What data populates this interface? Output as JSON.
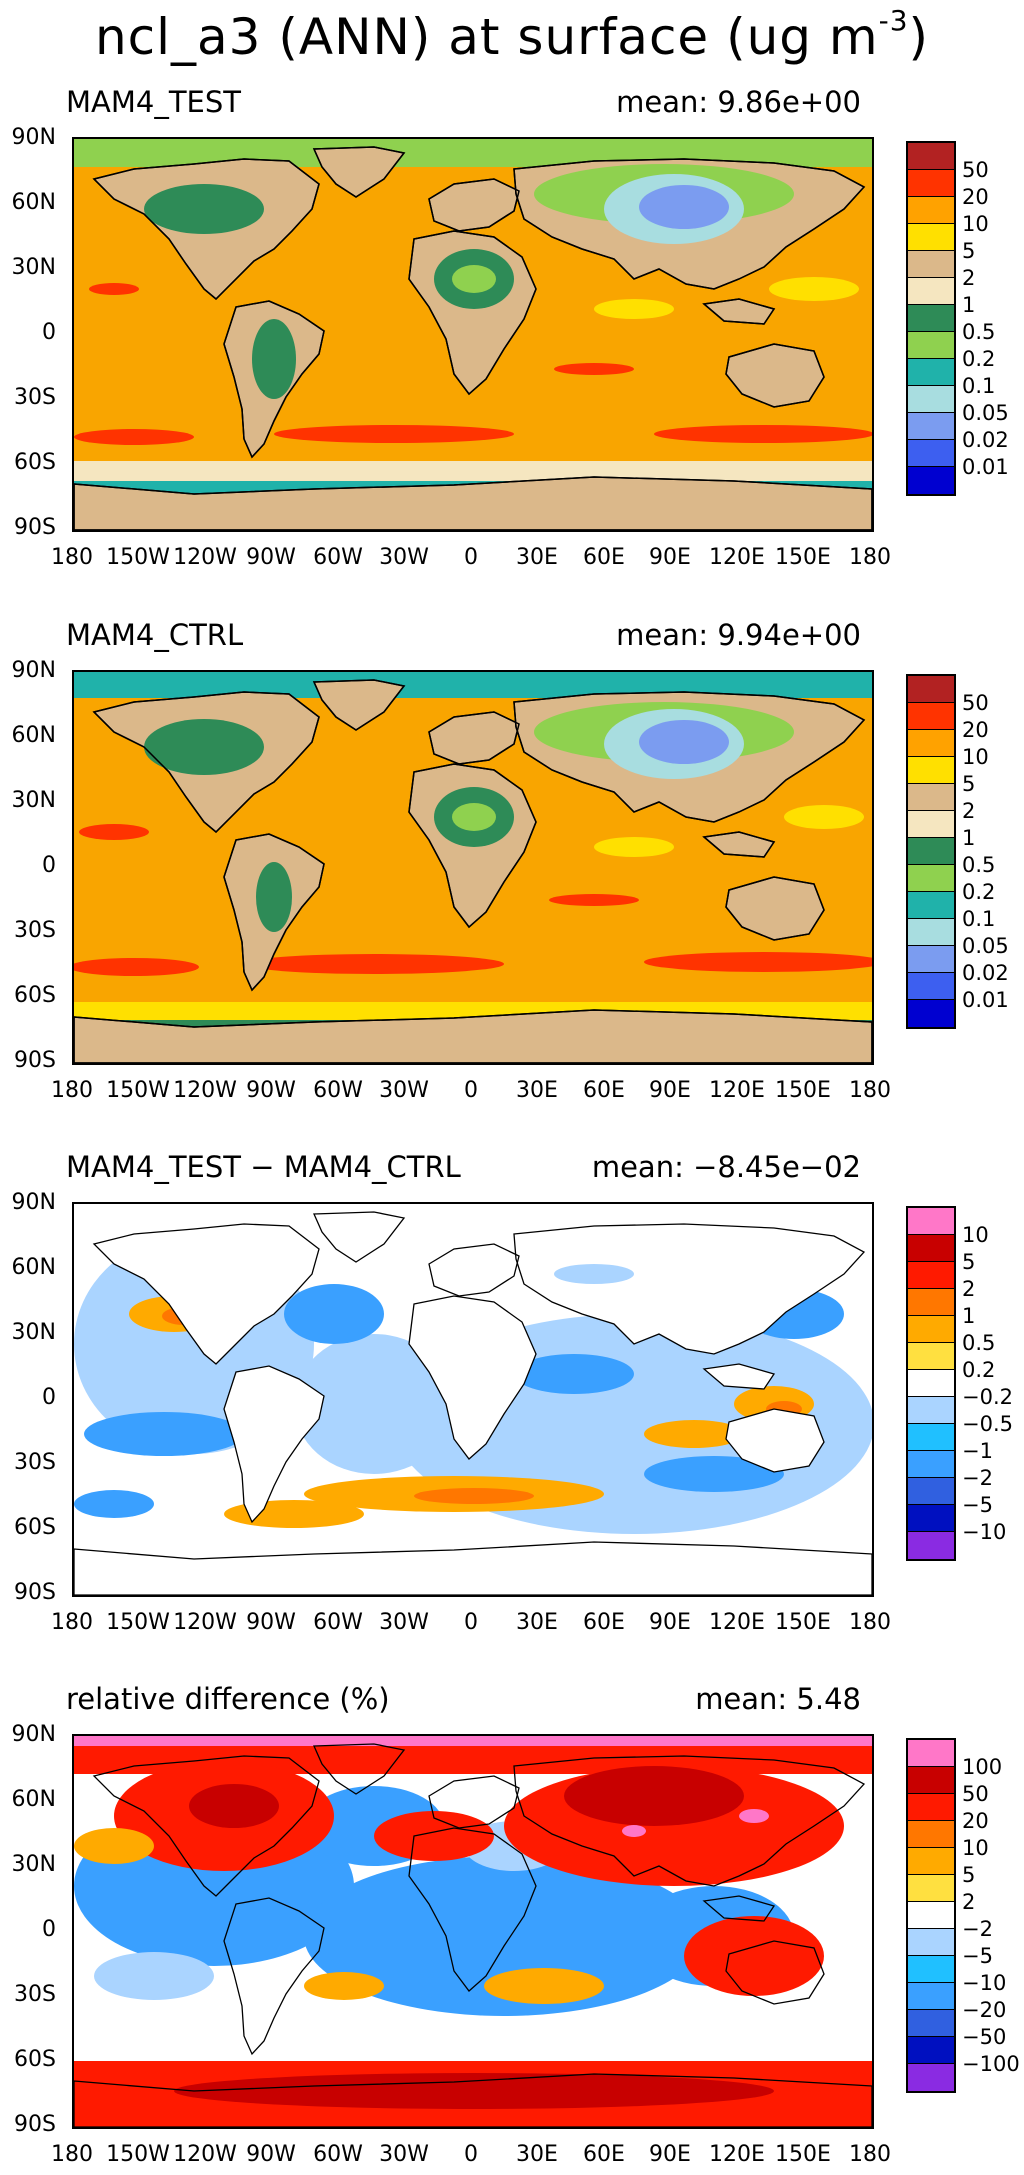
{
  "figure_title": {
    "text": "ncl_a3 (ANN) at surface (ug m",
    "exp": "-3",
    "close": ")"
  },
  "lat_labels": [
    "90N",
    "60N",
    "30N",
    "0",
    "30S",
    "60S",
    "90S"
  ],
  "lon_labels": [
    "180",
    "150W",
    "120W",
    "90W",
    "60W",
    "30W",
    "0",
    "30E",
    "60E",
    "90E",
    "120E",
    "150E",
    "180"
  ],
  "panels": [
    {
      "title": "MAM4_TEST",
      "mean_label": "mean: 9.86e+00",
      "kind": "abs",
      "legend_labels": [
        "50",
        "20",
        "10",
        "5",
        "2",
        "1",
        "0.5",
        "0.2",
        "0.1",
        "0.05",
        "0.02",
        "0.01"
      ],
      "legend_colors": [
        "#b22222",
        "#ff3300",
        "#ffa200",
        "#ffe000",
        "#dbb88a",
        "#f5e6c0",
        "#2e8b57",
        "#8fd14f",
        "#20b2aa",
        "#a8dde0",
        "#7b9cf0",
        "#3d5ff0",
        "#0000d0"
      ]
    },
    {
      "title": "MAM4_CTRL",
      "mean_label": "mean: 9.94e+00",
      "kind": "abs",
      "legend_labels": [
        "50",
        "20",
        "10",
        "5",
        "2",
        "1",
        "0.5",
        "0.2",
        "0.1",
        "0.05",
        "0.02",
        "0.01"
      ],
      "legend_colors": [
        "#b22222",
        "#ff3300",
        "#ffa200",
        "#ffe000",
        "#dbb88a",
        "#f5e6c0",
        "#2e8b57",
        "#8fd14f",
        "#20b2aa",
        "#a8dde0",
        "#7b9cf0",
        "#3d5ff0",
        "#0000d0"
      ]
    },
    {
      "title": "MAM4_TEST − MAM4_CTRL",
      "mean_label": "mean: −8.45e−02",
      "kind": "diff",
      "legend_labels": [
        "10",
        "5",
        "2",
        "1",
        "0.5",
        "0.2",
        "−0.2",
        "−0.5",
        "−1",
        "−2",
        "−5",
        "−10"
      ],
      "legend_colors": [
        "#ff77c8",
        "#c80000",
        "#ff1a00",
        "#ff7700",
        "#ffaa00",
        "#ffe040",
        "#ffffff",
        "#aad4ff",
        "#20c0ff",
        "#3aa0ff",
        "#3060e0",
        "#0010c0",
        "#8a2be2"
      ]
    },
    {
      "title": "relative difference (%)",
      "mean_label": "mean:  5.48",
      "kind": "rel",
      "legend_labels": [
        "100",
        "50",
        "20",
        "10",
        "5",
        "2",
        "−2",
        "−5",
        "−10",
        "−20",
        "−50",
        "−100"
      ],
      "legend_colors": [
        "#ff77c8",
        "#c80000",
        "#ff1a00",
        "#ff7700",
        "#ffaa00",
        "#ffe040",
        "#ffffff",
        "#aad4ff",
        "#20c0ff",
        "#3aa0ff",
        "#3060e0",
        "#0010c0",
        "#8a2be2"
      ]
    }
  ]
}
